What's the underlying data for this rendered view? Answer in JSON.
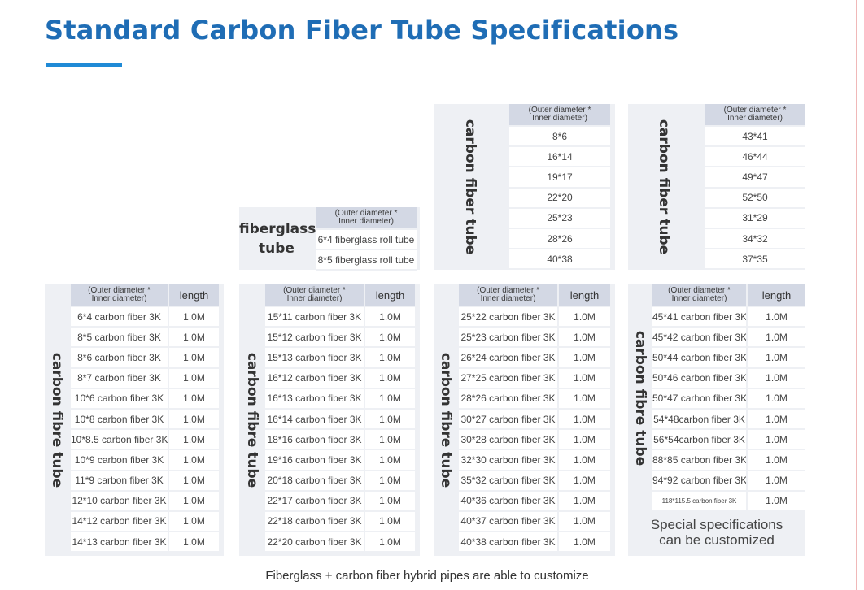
{
  "title": "Standard Carbon Fiber Tube Specifications",
  "header": {
    "diameter_line1": "(Outer diameter *",
    "diameter_line2": "Inner diameter)",
    "length": "length"
  },
  "labels": {
    "carbon_fibre_tube": "carbon fibre tube",
    "carbon_fiber_tube": "carbon fiber tube",
    "fiberglass_line1": "fiberglass",
    "fiberglass_line2": "tube"
  },
  "fiberglass": {
    "rows": [
      "6*4 fiberglass roll tube",
      "8*5 fiberglass roll tube"
    ]
  },
  "top_tables": [
    {
      "rows": [
        "8*6",
        "16*14",
        "19*17",
        "22*20",
        "25*23",
        "28*26",
        "40*38"
      ]
    },
    {
      "rows": [
        "43*41",
        "46*44",
        "49*47",
        "52*50",
        "31*29",
        "34*32",
        "37*35"
      ]
    }
  ],
  "bottom_tables": [
    {
      "rows": [
        [
          "6*4 carbon fiber 3K",
          "1.0M"
        ],
        [
          "8*5 carbon fiber 3K",
          "1.0M"
        ],
        [
          "8*6 carbon fiber 3K",
          "1.0M"
        ],
        [
          "8*7 carbon fiber 3K",
          "1.0M"
        ],
        [
          "10*6 carbon fiber 3K",
          "1.0M"
        ],
        [
          "10*8 carbon fiber 3K",
          "1.0M"
        ],
        [
          "10*8.5 carbon fiber 3K",
          "1.0M"
        ],
        [
          "10*9 carbon fiber 3K",
          "1.0M"
        ],
        [
          "11*9 carbon fiber 3K",
          "1.0M"
        ],
        [
          "12*10 carbon fiber 3K",
          "1.0M"
        ],
        [
          "14*12 carbon fiber 3K",
          "1.0M"
        ],
        [
          "14*13 carbon fiber 3K",
          "1.0M"
        ]
      ]
    },
    {
      "rows": [
        [
          "15*11 carbon fiber 3K",
          "1.0M"
        ],
        [
          "15*12 carbon fiber 3K",
          "1.0M"
        ],
        [
          "15*13 carbon fiber 3K",
          "1.0M"
        ],
        [
          "16*12 carbon fiber 3K",
          "1.0M"
        ],
        [
          "16*13 carbon fiber 3K",
          "1.0M"
        ],
        [
          "16*14 carbon fiber 3K",
          "1.0M"
        ],
        [
          "18*16 carbon fiber 3K",
          "1.0M"
        ],
        [
          "19*16 carbon fiber 3K",
          "1.0M"
        ],
        [
          "20*18 carbon fiber 3K",
          "1.0M"
        ],
        [
          "22*17 carbon fiber 3K",
          "1.0M"
        ],
        [
          "22*18 carbon fiber 3K",
          "1.0M"
        ],
        [
          "22*20 carbon fiber 3K",
          "1.0M"
        ]
      ]
    },
    {
      "rows": [
        [
          "25*22 carbon fiber 3K",
          "1.0M"
        ],
        [
          "25*23 carbon fiber 3K",
          "1.0M"
        ],
        [
          "26*24 carbon fiber 3K",
          "1.0M"
        ],
        [
          "27*25 carbon fiber 3K",
          "1.0M"
        ],
        [
          "28*26 carbon fiber 3K",
          "1.0M"
        ],
        [
          "30*27 carbon fiber 3K",
          "1.0M"
        ],
        [
          "30*28 carbon fiber 3K",
          "1.0M"
        ],
        [
          "32*30 carbon fiber 3K",
          "1.0M"
        ],
        [
          "35*32 carbon fiber 3K",
          "1.0M"
        ],
        [
          "40*36 carbon fiber 3K",
          "1.0M"
        ],
        [
          "40*37 carbon fiber 3K",
          "1.0M"
        ],
        [
          "40*38 carbon fiber 3K",
          "1.0M"
        ]
      ]
    },
    {
      "rows": [
        [
          "45*41 carbon fiber 3K",
          "1.0M"
        ],
        [
          "45*42 carbon fiber 3K",
          "1.0M"
        ],
        [
          "50*44 carbon fiber 3K",
          "1.0M"
        ],
        [
          "50*46 carbon fiber 3K",
          "1.0M"
        ],
        [
          "50*47 carbon fiber 3K",
          "1.0M"
        ],
        [
          "54*48carbon fiber 3K",
          "1.0M"
        ],
        [
          "56*54carbon fiber 3K",
          "1.0M"
        ],
        [
          "88*85 carbon fiber 3K",
          "1.0M"
        ],
        [
          "94*92 carbon fiber 3K",
          "1.0M"
        ],
        [
          "118*115.5 carbon fiber 3K",
          "1.0M"
        ]
      ]
    }
  ],
  "note": {
    "line1": "Special specifications",
    "line2": "can be customized"
  },
  "footer": "Fiberglass + carbon fiber hybrid pipes are able to customize"
}
